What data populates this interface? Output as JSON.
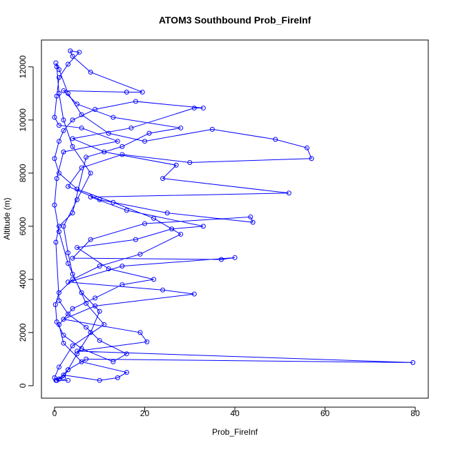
{
  "chart_data": {
    "type": "line",
    "title": "ATOM3 Southbound Prob_FireInf",
    "x_label": "Prob_FireInf",
    "y_label": "Altitude (m)",
    "color": "#0000ff",
    "markers": "circle",
    "xlim": [
      -2.9,
      82.9
    ],
    "ylim": [
      -470,
      13010
    ],
    "xticks": [
      0,
      20,
      40,
      60,
      80
    ],
    "yticks": [
      0,
      2000,
      4000,
      6000,
      8000,
      10000,
      12000
    ],
    "x": [
      0.5,
      1,
      2,
      3,
      5,
      8,
      10,
      6,
      4,
      3,
      2,
      5,
      8,
      4,
      2,
      1,
      0.5,
      0.3,
      1,
      3,
      6,
      12,
      20,
      35,
      49,
      56,
      57,
      30,
      15,
      6,
      3,
      10,
      25,
      44,
      43.5,
      20,
      8,
      4,
      37,
      40,
      15,
      3,
      24,
      31,
      9,
      2,
      19,
      20.5,
      5,
      79.5,
      7,
      3,
      1,
      0.3,
      2,
      10,
      14,
      16,
      6,
      2,
      1,
      4,
      9,
      15,
      22,
      12,
      5,
      18,
      26,
      33,
      16,
      8,
      52,
      24,
      27,
      11,
      4,
      17,
      31,
      33,
      18,
      9,
      4,
      2,
      1,
      0,
      1,
      5,
      13,
      22,
      28,
      19,
      10,
      4,
      1,
      0.2,
      0.5,
      2,
      6,
      13,
      16,
      10,
      7,
      3,
      1,
      0.3,
      1,
      4,
      7,
      15,
      21,
      28,
      13,
      5,
      2,
      16,
      19.5,
      8,
      4,
      3.5,
      5.5,
      3,
      1,
      0.5,
      0,
      1,
      6,
      14,
      2,
      0.5,
      0,
      1,
      3,
      7,
      11,
      4,
      1,
      0,
      0.5,
      3
    ],
    "y": [
      200,
      250,
      300,
      600,
      1200,
      2000,
      2800,
      3500,
      4200,
      5000,
      6000,
      7000,
      8000,
      9000,
      10000,
      11000,
      12000,
      12150,
      11900,
      11000,
      10200,
      9500,
      9200,
      9650,
      9270,
      8950,
      8550,
      8400,
      8700,
      8200,
      7500,
      7000,
      6500,
      6150,
      6350,
      6100,
      5500,
      4800,
      4750,
      4820,
      4500,
      3900,
      3600,
      3450,
      3000,
      2500,
      2000,
      1650,
      1300,
      870,
      1000,
      600,
      250,
      200,
      400,
      200,
      300,
      500,
      900,
      1600,
      2300,
      2900,
      3300,
      3800,
      4000,
      4400,
      5200,
      5500,
      5900,
      6000,
      6600,
      7100,
      7250,
      7800,
      8300,
      8800,
      9300,
      9700,
      10450,
      10450,
      10700,
      10400,
      10000,
      9600,
      9200,
      8550,
      8000,
      7400,
      6900,
      6300,
      5700,
      4950,
      4500,
      4000,
      3500,
      3050,
      2400,
      1900,
      1400,
      900,
      1200,
      1700,
      2200,
      2700,
      3200,
      5400,
      6000,
      6500,
      8600,
      9000,
      9500,
      9700,
      10100,
      10600,
      11100,
      11050,
      11050,
      11800,
      12400,
      12600,
      12550,
      12100,
      11600,
      10900,
      10100,
      9800,
      9700,
      9200,
      8800,
      7800,
      6800,
      5800,
      4600,
      3100,
      2300,
      1500,
      700,
      300,
      200,
      200
    ]
  }
}
